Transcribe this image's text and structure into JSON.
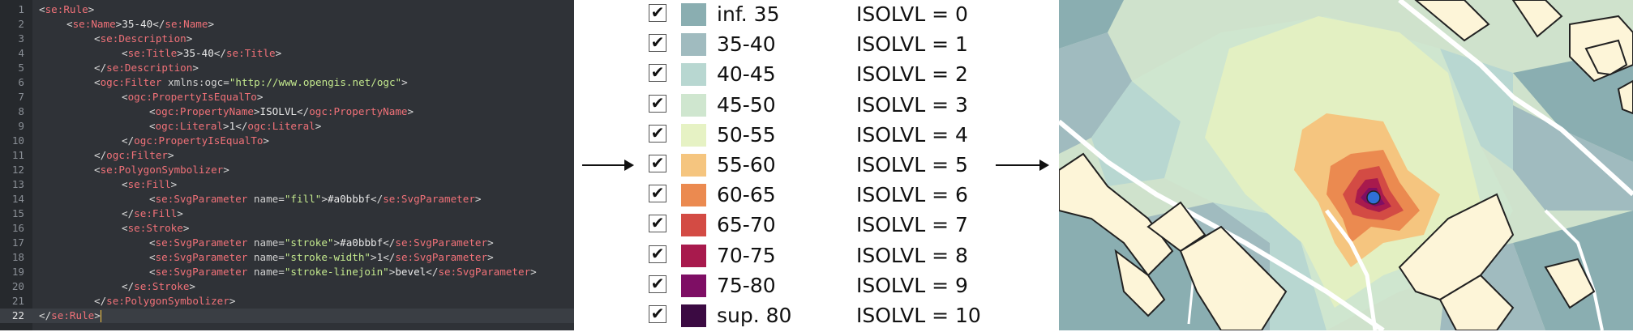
{
  "editor": {
    "current_line": 22,
    "lines": [
      {
        "n": "1",
        "indent": 0,
        "tokens": [
          [
            "tb",
            "<"
          ],
          [
            "tn",
            "se:Rule"
          ],
          [
            "tb",
            ">"
          ]
        ]
      },
      {
        "n": "2",
        "indent": 1,
        "tokens": [
          [
            "tb",
            "<"
          ],
          [
            "tn",
            "se:Name"
          ],
          [
            "tb",
            ">"
          ],
          [
            "tx",
            "35-40"
          ],
          [
            "tb",
            "</"
          ],
          [
            "tn",
            "se:Name"
          ],
          [
            "tb",
            ">"
          ]
        ]
      },
      {
        "n": "3",
        "indent": 2,
        "tokens": [
          [
            "tb",
            "<"
          ],
          [
            "tn",
            "se:Description"
          ],
          [
            "tb",
            ">"
          ]
        ]
      },
      {
        "n": "4",
        "indent": 3,
        "tokens": [
          [
            "tb",
            "<"
          ],
          [
            "tn",
            "se:Title"
          ],
          [
            "tb",
            ">"
          ],
          [
            "tx",
            "35-40"
          ],
          [
            "tb",
            "</"
          ],
          [
            "tn",
            "se:Title"
          ],
          [
            "tb",
            ">"
          ]
        ]
      },
      {
        "n": "5",
        "indent": 2,
        "tokens": [
          [
            "tb",
            "</"
          ],
          [
            "tn",
            "se:Description"
          ],
          [
            "tb",
            ">"
          ]
        ]
      },
      {
        "n": "6",
        "indent": 2,
        "tokens": [
          [
            "tb",
            "<"
          ],
          [
            "tn",
            "ogc:Filter"
          ],
          [
            "an",
            " xmlns:ogc"
          ],
          [
            "tb",
            "="
          ],
          [
            "av",
            "\"http://www.opengis.net/ogc\""
          ],
          [
            "tb",
            ">"
          ]
        ]
      },
      {
        "n": "7",
        "indent": 3,
        "tokens": [
          [
            "tb",
            "<"
          ],
          [
            "tn",
            "ogc:PropertyIsEqualTo"
          ],
          [
            "tb",
            ">"
          ]
        ]
      },
      {
        "n": "8",
        "indent": 4,
        "tokens": [
          [
            "tb",
            "<"
          ],
          [
            "tn",
            "ogc:PropertyName"
          ],
          [
            "tb",
            ">"
          ],
          [
            "tx",
            "ISOLVL"
          ],
          [
            "tb",
            "</"
          ],
          [
            "tn",
            "ogc:PropertyName"
          ],
          [
            "tb",
            ">"
          ]
        ]
      },
      {
        "n": "9",
        "indent": 4,
        "tokens": [
          [
            "tb",
            "<"
          ],
          [
            "tn",
            "ogc:Literal"
          ],
          [
            "tb",
            ">"
          ],
          [
            "tx",
            "1"
          ],
          [
            "tb",
            "</"
          ],
          [
            "tn",
            "ogc:Literal"
          ],
          [
            "tb",
            ">"
          ]
        ]
      },
      {
        "n": "10",
        "indent": 3,
        "tokens": [
          [
            "tb",
            "</"
          ],
          [
            "tn",
            "ogc:PropertyIsEqualTo"
          ],
          [
            "tb",
            ">"
          ]
        ]
      },
      {
        "n": "11",
        "indent": 2,
        "tokens": [
          [
            "tb",
            "</"
          ],
          [
            "tn",
            "ogc:Filter"
          ],
          [
            "tb",
            ">"
          ]
        ]
      },
      {
        "n": "12",
        "indent": 2,
        "tokens": [
          [
            "tb",
            "<"
          ],
          [
            "tn",
            "se:PolygonSymbolizer"
          ],
          [
            "tb",
            ">"
          ]
        ]
      },
      {
        "n": "13",
        "indent": 3,
        "tokens": [
          [
            "tb",
            "<"
          ],
          [
            "tn",
            "se:Fill"
          ],
          [
            "tb",
            ">"
          ]
        ]
      },
      {
        "n": "14",
        "indent": 4,
        "tokens": [
          [
            "tb",
            "<"
          ],
          [
            "tn",
            "se:SvgParameter"
          ],
          [
            "an",
            " name"
          ],
          [
            "tb",
            "="
          ],
          [
            "av",
            "\"fill\""
          ],
          [
            "tb",
            ">"
          ],
          [
            "tx",
            "#a0bbbf"
          ],
          [
            "tb",
            "</"
          ],
          [
            "tn",
            "se:SvgParameter"
          ],
          [
            "tb",
            ">"
          ]
        ]
      },
      {
        "n": "15",
        "indent": 3,
        "tokens": [
          [
            "tb",
            "</"
          ],
          [
            "tn",
            "se:Fill"
          ],
          [
            "tb",
            ">"
          ]
        ]
      },
      {
        "n": "16",
        "indent": 3,
        "tokens": [
          [
            "tb",
            "<"
          ],
          [
            "tn",
            "se:Stroke"
          ],
          [
            "tb",
            ">"
          ]
        ]
      },
      {
        "n": "17",
        "indent": 4,
        "tokens": [
          [
            "tb",
            "<"
          ],
          [
            "tn",
            "se:SvgParameter"
          ],
          [
            "an",
            " name"
          ],
          [
            "tb",
            "="
          ],
          [
            "av",
            "\"stroke\""
          ],
          [
            "tb",
            ">"
          ],
          [
            "tx",
            "#a0bbbf"
          ],
          [
            "tb",
            "</"
          ],
          [
            "tn",
            "se:SvgParameter"
          ],
          [
            "tb",
            ">"
          ]
        ]
      },
      {
        "n": "18",
        "indent": 4,
        "tokens": [
          [
            "tb",
            "<"
          ],
          [
            "tn",
            "se:SvgParameter"
          ],
          [
            "an",
            " name"
          ],
          [
            "tb",
            "="
          ],
          [
            "av",
            "\"stroke-width\""
          ],
          [
            "tb",
            ">"
          ],
          [
            "tx",
            "1"
          ],
          [
            "tb",
            "</"
          ],
          [
            "tn",
            "se:SvgParameter"
          ],
          [
            "tb",
            ">"
          ]
        ]
      },
      {
        "n": "19",
        "indent": 4,
        "tokens": [
          [
            "tb",
            "<"
          ],
          [
            "tn",
            "se:SvgParameter"
          ],
          [
            "an",
            " name"
          ],
          [
            "tb",
            "="
          ],
          [
            "av",
            "\"stroke-linejoin\""
          ],
          [
            "tb",
            ">"
          ],
          [
            "tx",
            "bevel"
          ],
          [
            "tb",
            "</"
          ],
          [
            "tn",
            "se:SvgParameter"
          ],
          [
            "tb",
            ">"
          ]
        ]
      },
      {
        "n": "20",
        "indent": 3,
        "tokens": [
          [
            "tb",
            "</"
          ],
          [
            "tn",
            "se:Stroke"
          ],
          [
            "tb",
            ">"
          ]
        ]
      },
      {
        "n": "21",
        "indent": 2,
        "tokens": [
          [
            "tb",
            "</"
          ],
          [
            "tn",
            "se:PolygonSymbolizer"
          ],
          [
            "tb",
            ">"
          ]
        ]
      },
      {
        "n": "22",
        "indent": 0,
        "tokens": [
          [
            "tb",
            "</"
          ],
          [
            "tn",
            "se:Rule"
          ],
          [
            "tb",
            ">"
          ]
        ]
      }
    ]
  },
  "legend": {
    "checkmark": "✔",
    "items": [
      {
        "range": "inf. 35",
        "iso": "ISOLVL = 0",
        "color": "#8aaeb1",
        "checked": true
      },
      {
        "range": "35-40",
        "iso": "ISOLVL = 1",
        "color": "#a0bbbf",
        "checked": true
      },
      {
        "range": "40-45",
        "iso": "ISOLVL = 2",
        "color": "#b8d7d1",
        "checked": true
      },
      {
        "range": "45-50",
        "iso": "ISOLVL = 3",
        "color": "#cfe6cf",
        "checked": true
      },
      {
        "range": "50-55",
        "iso": "ISOLVL = 4",
        "color": "#e6f2c4",
        "checked": true
      },
      {
        "range": "55-60",
        "iso": "ISOLVL = 5",
        "color": "#f5c57f",
        "checked": true
      },
      {
        "range": "60-65",
        "iso": "ISOLVL = 6",
        "color": "#eb8a50",
        "checked": true
      },
      {
        "range": "65-70",
        "iso": "ISOLVL = 7",
        "color": "#d34b44",
        "checked": true
      },
      {
        "range": "70-75",
        "iso": "ISOLVL = 8",
        "color": "#a81a4d",
        "checked": true
      },
      {
        "range": "75-80",
        "iso": "ISOLVL = 9",
        "color": "#7e0e64",
        "checked": true
      },
      {
        "range": "sup. 80",
        "iso": "ISOLVL = 10",
        "color": "#3b0a42",
        "checked": true
      }
    ]
  },
  "map": {
    "colors": {
      "base": "#cfe2cc",
      "lvl0": "#8aaeb1",
      "lvl1": "#a0bbbf",
      "lvl2": "#b8d7d1",
      "lvl3": "#cfe6cf",
      "lvl4": "#e3f0c2",
      "lvl5": "#f5c57f",
      "lvl6": "#eb8a50",
      "lvl7": "#d34b44",
      "lvl8": "#a81a4d",
      "lvl9": "#7e0e64",
      "lvl10": "#3b0a42",
      "building": "#fdf5d8",
      "building_outline": "#222222",
      "road": "#ffffff",
      "source": "#2f6fd6"
    }
  }
}
